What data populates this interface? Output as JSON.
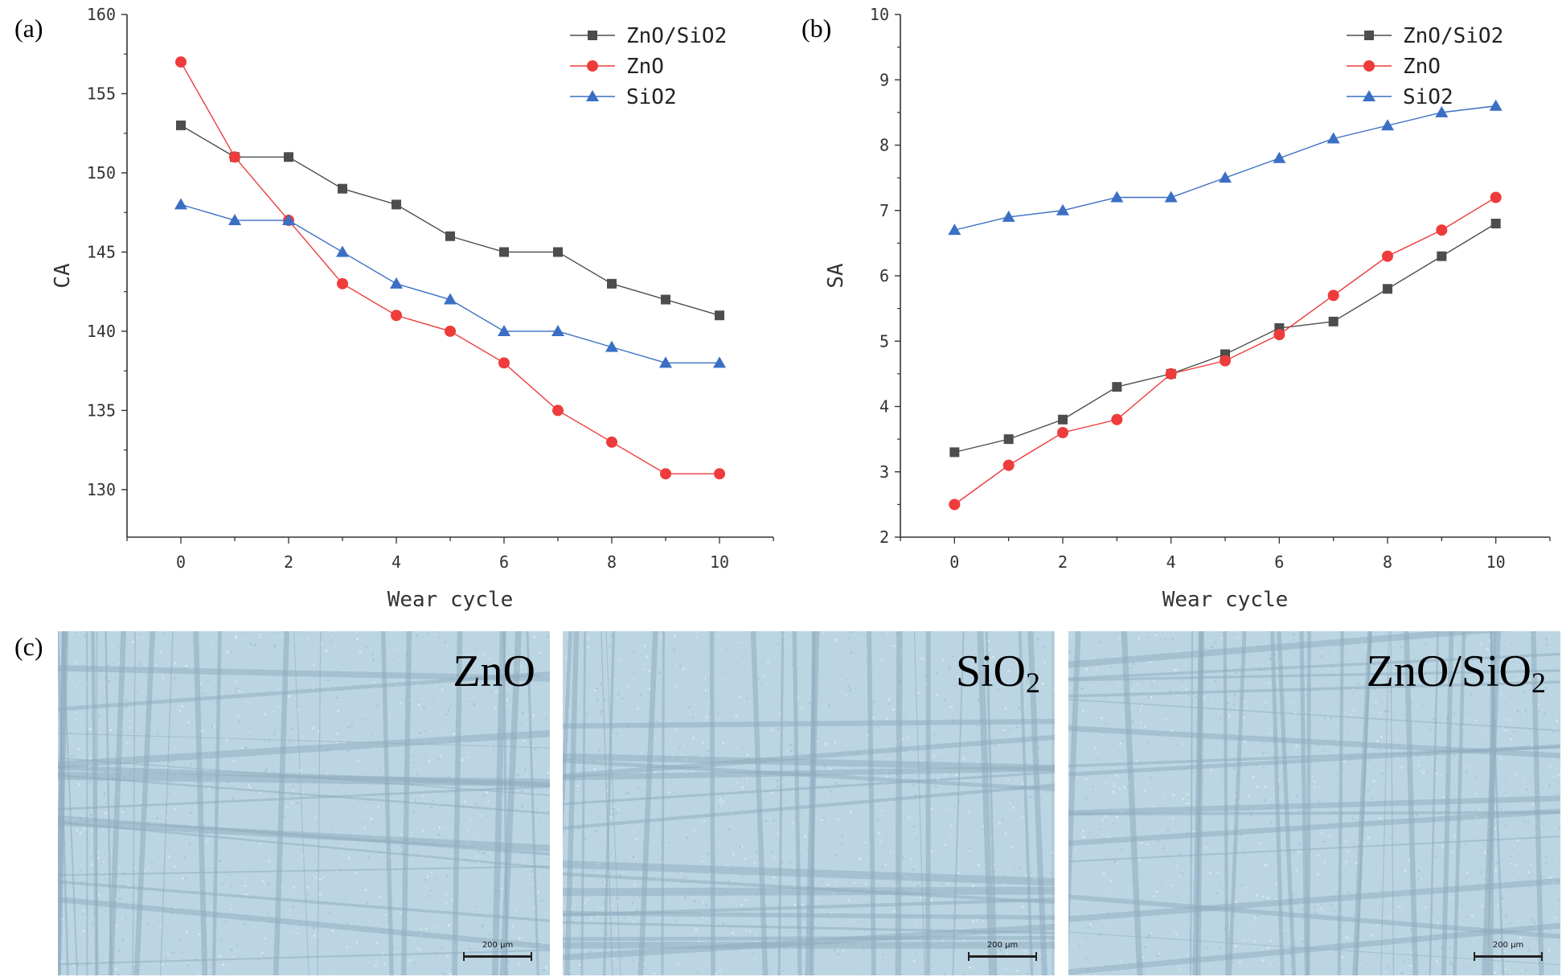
{
  "chart_data": [
    {
      "panel_label": "(a)",
      "type": "line",
      "xlabel": "Wear cycle",
      "ylabel": "CA",
      "xlim": [
        -1,
        11
      ],
      "ylim": [
        127,
        160
      ],
      "xticks": [
        0,
        2,
        4,
        6,
        8,
        10
      ],
      "yticks": [
        130,
        135,
        140,
        145,
        150,
        155,
        160
      ],
      "x": [
        0,
        1,
        2,
        3,
        4,
        5,
        6,
        7,
        8,
        9,
        10
      ],
      "legend_position": "top-right",
      "series": [
        {
          "name": "ZnO/SiO2",
          "marker": "square",
          "color": "#4d4d4d",
          "values": [
            153,
            151,
            151,
            149,
            148,
            146,
            145,
            145,
            143,
            142,
            141
          ]
        },
        {
          "name": "ZnO",
          "marker": "circle",
          "color": "#ee3b3b",
          "values": [
            157,
            151,
            147,
            143,
            141,
            140,
            138,
            135,
            133,
            131,
            131
          ]
        },
        {
          "name": "SiO2",
          "marker": "triangle",
          "color": "#3a6fc4",
          "values": [
            148,
            147,
            147,
            145,
            143,
            142,
            140,
            140,
            139,
            138,
            138
          ]
        }
      ]
    },
    {
      "panel_label": "(b)",
      "type": "line",
      "xlabel": "Wear cycle",
      "ylabel": "SA",
      "xlim": [
        -1,
        11
      ],
      "ylim": [
        2,
        10
      ],
      "xticks": [
        0,
        2,
        4,
        6,
        8,
        10
      ],
      "yticks": [
        2,
        3,
        4,
        5,
        6,
        7,
        8,
        9,
        10
      ],
      "x": [
        0,
        1,
        2,
        3,
        4,
        5,
        6,
        7,
        8,
        9,
        10
      ],
      "legend_position": "top-right",
      "series": [
        {
          "name": "ZnO/SiO2",
          "marker": "square",
          "color": "#4d4d4d",
          "values": [
            3.3,
            3.5,
            3.8,
            4.3,
            4.5,
            4.8,
            5.2,
            5.3,
            5.8,
            6.3,
            6.8
          ]
        },
        {
          "name": "ZnO",
          "marker": "circle",
          "color": "#ee3b3b",
          "values": [
            2.5,
            3.1,
            3.6,
            3.8,
            4.5,
            4.7,
            5.1,
            5.7,
            6.3,
            6.7,
            7.2
          ]
        },
        {
          "name": "SiO2",
          "marker": "triangle",
          "color": "#3a6fc4",
          "values": [
            6.7,
            6.9,
            7.0,
            7.2,
            7.2,
            7.5,
            7.8,
            8.1,
            8.3,
            8.5,
            8.6
          ]
        }
      ]
    }
  ],
  "panel_c": {
    "label": "(c)",
    "images": [
      {
        "label_main": "ZnO",
        "label_sub": "",
        "scale": "200 μm"
      },
      {
        "label_main": "SiO",
        "label_sub": "2",
        "scale": "200 μm"
      },
      {
        "label_main": "ZnO/SiO",
        "label_sub": "2",
        "scale": "200 μm"
      }
    ]
  }
}
